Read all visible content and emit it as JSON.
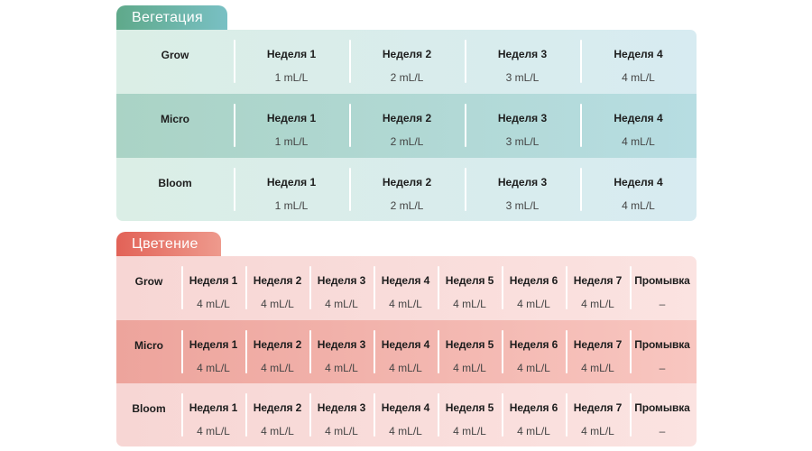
{
  "vegetation": {
    "title": "Вегетация",
    "rows": [
      {
        "name": "Grow",
        "cells": [
          {
            "week": "Неделя 1",
            "dose": "1 mL/L"
          },
          {
            "week": "Неделя 2",
            "dose": "2 mL/L"
          },
          {
            "week": "Неделя 3",
            "dose": "3 mL/L"
          },
          {
            "week": "Неделя 4",
            "dose": "4 mL/L"
          }
        ]
      },
      {
        "name": "Micro",
        "cells": [
          {
            "week": "Неделя 1",
            "dose": "1 mL/L"
          },
          {
            "week": "Неделя 2",
            "dose": "2 mL/L"
          },
          {
            "week": "Неделя 3",
            "dose": "3 mL/L"
          },
          {
            "week": "Неделя 4",
            "dose": "4 mL/L"
          }
        ]
      },
      {
        "name": "Bloom",
        "cells": [
          {
            "week": "Неделя 1",
            "dose": "1 mL/L"
          },
          {
            "week": "Неделя 2",
            "dose": "2 mL/L"
          },
          {
            "week": "Неделя 3",
            "dose": "3 mL/L"
          },
          {
            "week": "Неделя 4",
            "dose": "4 mL/L"
          }
        ]
      }
    ]
  },
  "flowering": {
    "title": "Цветение",
    "rows": [
      {
        "name": "Grow",
        "cells": [
          {
            "week": "Неделя 1",
            "dose": "4 mL/L"
          },
          {
            "week": "Неделя 2",
            "dose": "4 mL/L"
          },
          {
            "week": "Неделя 3",
            "dose": "4 mL/L"
          },
          {
            "week": "Неделя 4",
            "dose": "4 mL/L"
          },
          {
            "week": "Неделя 5",
            "dose": "4 mL/L"
          },
          {
            "week": "Неделя 6",
            "dose": "4 mL/L"
          },
          {
            "week": "Неделя 7",
            "dose": "4 mL/L"
          },
          {
            "week": "Промывка",
            "dose": "–"
          }
        ]
      },
      {
        "name": "Micro",
        "cells": [
          {
            "week": "Неделя 1",
            "dose": "4 mL/L"
          },
          {
            "week": "Неделя 2",
            "dose": "4 mL/L"
          },
          {
            "week": "Неделя 3",
            "dose": "4 mL/L"
          },
          {
            "week": "Неделя 4",
            "dose": "4 mL/L"
          },
          {
            "week": "Неделя 5",
            "dose": "4 mL/L"
          },
          {
            "week": "Неделя 6",
            "dose": "4 mL/L"
          },
          {
            "week": "Неделя 7",
            "dose": "4 mL/L"
          },
          {
            "week": "Промывка",
            "dose": "–"
          }
        ]
      },
      {
        "name": "Bloom",
        "cells": [
          {
            "week": "Неделя 1",
            "dose": "4 mL/L"
          },
          {
            "week": "Неделя 2",
            "dose": "4 mL/L"
          },
          {
            "week": "Неделя 3",
            "dose": "4 mL/L"
          },
          {
            "week": "Неделя 4",
            "dose": "4 mL/L"
          },
          {
            "week": "Неделя 5",
            "dose": "4 mL/L"
          },
          {
            "week": "Неделя 6",
            "dose": "4 mL/L"
          },
          {
            "week": "Неделя 7",
            "dose": "4 mL/L"
          },
          {
            "week": "Промывка",
            "dose": "–"
          }
        ]
      }
    ]
  }
}
